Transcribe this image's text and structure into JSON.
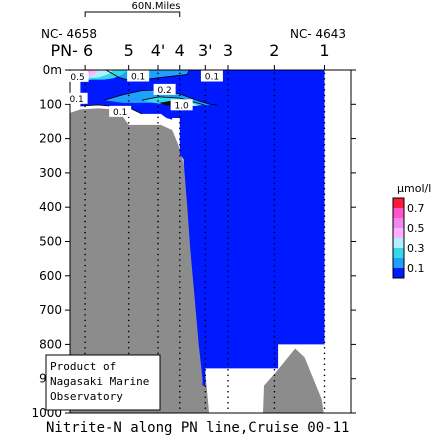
{
  "chart_data": {
    "type": "contour-section",
    "title": "Nitrite-N along PN line,Cruise 00-11",
    "ylim": [
      0,
      1000
    ],
    "y_ticks": [
      "0m",
      "100",
      "200",
      "300",
      "400",
      "500",
      "600",
      "700",
      "800",
      "900",
      "1000"
    ],
    "y_tick_values": [
      0,
      100,
      200,
      300,
      400,
      500,
      600,
      700,
      800,
      900,
      1000
    ],
    "stations": [
      {
        "label": "PN- 6",
        "x": 0
      },
      {
        "label": "5",
        "x": 46
      },
      {
        "label": "4'",
        "x": 77
      },
      {
        "label": "4",
        "x": 100
      },
      {
        "label": "3'",
        "x": 127
      },
      {
        "label": "3",
        "x": 151
      },
      {
        "label": "2",
        "x": 200
      },
      {
        "label": "1",
        "x": 253
      }
    ],
    "xlim": [
      -16,
      281
    ],
    "end_station_names": {
      "left": "NC- 4658",
      "right": "NC- 4643"
    },
    "scale_bar": {
      "label": "60N.Miles",
      "from": 0,
      "to": 100
    },
    "contour_labels": [
      {
        "text": "0.5",
        "x": -8,
        "y": 20
      },
      {
        "text": "0.1",
        "x": -9,
        "y": 84
      },
      {
        "text": "0.1",
        "x": 56,
        "y": 19
      },
      {
        "text": "0.2",
        "x": 84,
        "y": 58
      },
      {
        "text": "0.1",
        "x": 134,
        "y": 19
      },
      {
        "text": "1.0",
        "x": 102,
        "y": 103
      },
      {
        "text": "0.1",
        "x": 37,
        "y": 122
      }
    ],
    "colorbar": {
      "unit": "μmol/l",
      "labels": [
        "0.7",
        "0.5",
        "0.3",
        "0.1"
      ],
      "label_values": [
        0.7,
        0.5,
        0.3,
        0.1
      ],
      "levels": [
        {
          "value": 0.8,
          "color": "#ff1a3a"
        },
        {
          "value": 0.7,
          "color": "#ff55c8"
        },
        {
          "value": 0.6,
          "color": "#ee88ee"
        },
        {
          "value": 0.5,
          "color": "#ffb0ff"
        },
        {
          "value": 0.4,
          "color": "#b0f0ff"
        },
        {
          "value": 0.3,
          "color": "#36d8e8"
        },
        {
          "value": 0.2,
          "color": "#1fa0ff"
        },
        {
          "value": 0.1,
          "color": "#0019ff"
        }
      ]
    },
    "credit_lines": [
      "Product of",
      "Nagasaki Marine",
      "Observatory"
    ]
  }
}
